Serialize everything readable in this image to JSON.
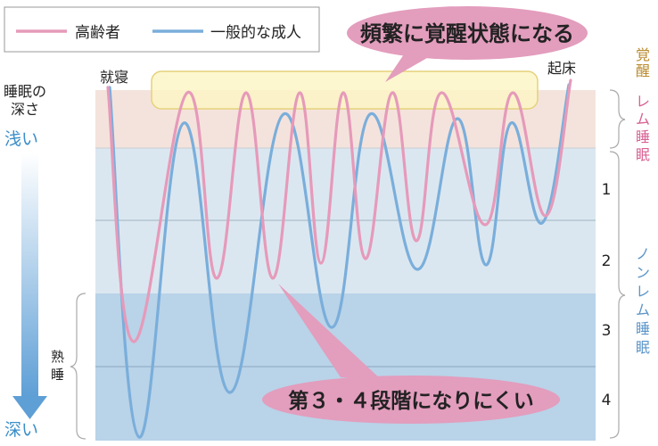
{
  "chart_data": {
    "type": "line",
    "title": "",
    "legend": {
      "placement": "top-left"
    },
    "series": [
      {
        "name": "高齢者",
        "color": "#e69aba",
        "role": "elderly"
      },
      {
        "name": "一般的な成人",
        "color": "#7aaedb",
        "role": "adult"
      }
    ],
    "y_axis": {
      "label_line1": "睡眠の",
      "label_line2": "深さ",
      "shallow_label": "浅い",
      "deep_label": "深い"
    },
    "stages": {
      "wake": "覚醒",
      "rem": "レム睡眠",
      "nonrem": "ノンレム睡眠",
      "stage_numbers": [
        "1",
        "2",
        "3",
        "4"
      ],
      "deep_sleep": "熟睡"
    },
    "markers": {
      "sleep_onset": "就寝",
      "wake_up": "起床"
    },
    "callouts": {
      "frequent_wake": "頻繁に覚醒状態になる",
      "few_deep": "第３・４段階になりにくい"
    }
  }
}
